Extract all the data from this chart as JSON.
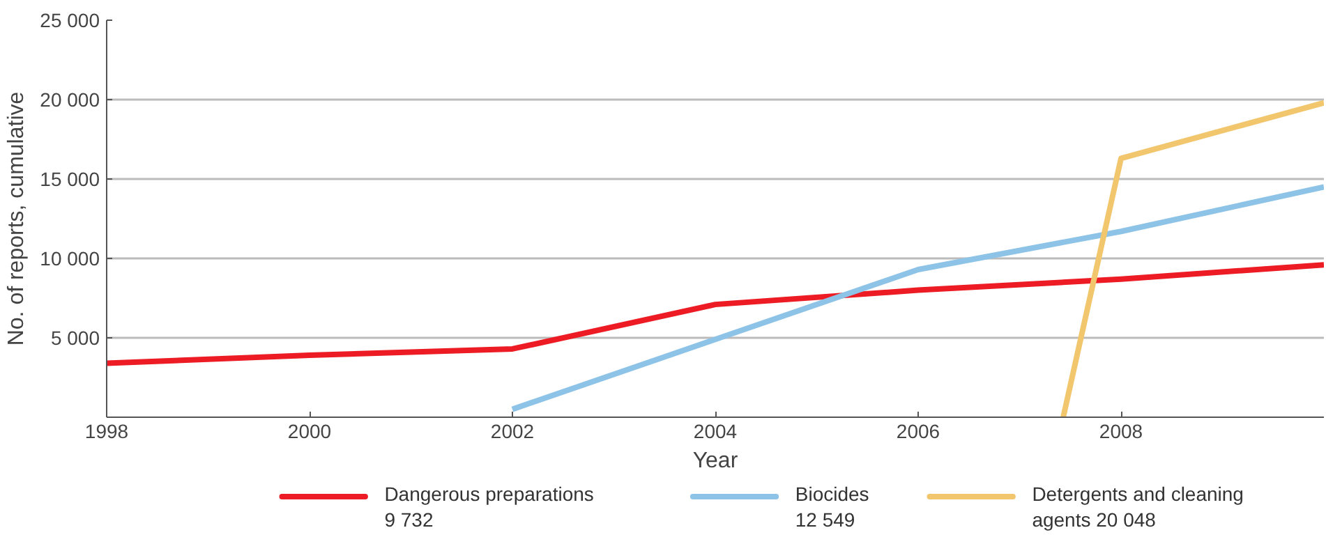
{
  "chart_data": {
    "type": "line",
    "xlabel": "Year",
    "ylabel": "No. of reports, cumulative",
    "xlim": [
      1998,
      2010
    ],
    "xticks": [
      1998,
      2000,
      2002,
      2004,
      2006,
      2008
    ],
    "ylim": [
      0,
      25000
    ],
    "yticks": [
      {
        "value": 0,
        "label": null
      },
      {
        "value": 5000,
        "label": "5 000"
      },
      {
        "value": 10000,
        "label": "10 000"
      },
      {
        "value": 15000,
        "label": "15 000"
      },
      {
        "value": 20000,
        "label": "20 000"
      },
      {
        "value": 25000,
        "label": "25 000"
      }
    ],
    "grid": "y",
    "legend": "bottom",
    "line_style": "solid",
    "marker": "none",
    "series": [
      {
        "name": "Dangerous preparations\n9 732",
        "color": "#ed1c24",
        "x": [
          1998,
          2000,
          2002,
          2004,
          2006,
          2008,
          2010
        ],
        "values": [
          3400,
          3900,
          4300,
          7100,
          8000,
          8700,
          9600
        ]
      },
      {
        "name": "Biocides\n12 549",
        "color": "#8ec3e8",
        "x": [
          2002,
          2004,
          2006,
          2008,
          2010
        ],
        "values": [
          500,
          4900,
          9300,
          11700,
          14500
        ]
      },
      {
        "name": "Detergents and cleaning\nagents 20 048",
        "color": "#f2c66d",
        "x": [
          2007.43,
          2008,
          2010
        ],
        "values": [
          0,
          16300,
          19800
        ]
      }
    ]
  }
}
